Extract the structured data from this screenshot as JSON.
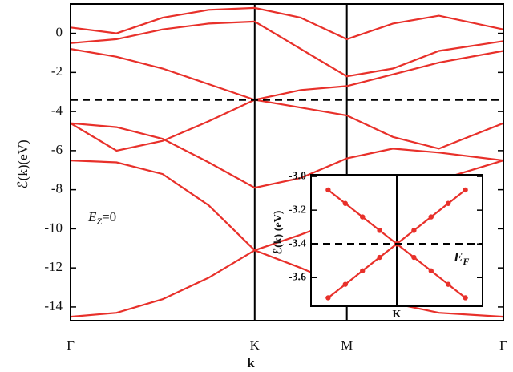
{
  "chart_data": [
    {
      "type": "line",
      "x_label": "k",
      "y_label": "ℰ(k)(eV)",
      "annotation": {
        "symbol": "E",
        "subscript": "Z",
        "text": "=0"
      },
      "x": [
        0,
        0.25,
        0.5,
        0.75,
        1,
        1.25,
        1.5,
        1.75,
        2,
        2.35
      ],
      "series": [
        {
          "color": "#e8302a",
          "values": [
            -0.8,
            -1.2,
            -1.8,
            -2.6,
            -3.4,
            -2.9,
            -2.7,
            -2.1,
            -1.5,
            -0.9
          ]
        },
        {
          "color": "#e8302a",
          "values": [
            -4.6,
            -6.0,
            -5.5,
            -4.5,
            -3.4,
            -3.8,
            -4.2,
            -5.3,
            -5.9,
            -4.6
          ]
        },
        {
          "color": "#e8302a",
          "values": [
            -4.6,
            -4.8,
            -5.4,
            -6.6,
            -7.9,
            -7.4,
            -6.4,
            -5.9,
            -6.1,
            -6.5
          ]
        },
        {
          "color": "#e8302a",
          "values": [
            -6.5,
            -6.6,
            -7.2,
            -8.8,
            -11.1,
            -10.3,
            -9.4,
            -8.3,
            -7.5,
            -6.5
          ]
        },
        {
          "color": "#e8302a",
          "values": [
            -14.5,
            -14.3,
            -13.6,
            -12.5,
            -11.1,
            -12.0,
            -13.0,
            -13.8,
            -14.3,
            -14.5
          ]
        },
        {
          "color": "#e8302a",
          "values": [
            -0.5,
            -0.3,
            0.2,
            0.5,
            0.6,
            -0.8,
            -2.2,
            -1.8,
            -0.9,
            -0.4
          ]
        },
        {
          "color": "#e8302a",
          "values": [
            0.3,
            0.0,
            0.8,
            1.2,
            1.3,
            0.8,
            -0.3,
            0.5,
            0.9,
            0.2
          ]
        }
      ],
      "hline": -3.4,
      "xlim": [
        0,
        2.35
      ],
      "xticks": [
        {
          "value": 0,
          "label": "Γ"
        },
        {
          "value": 1,
          "label": "K"
        },
        {
          "value": 1.5,
          "label": "M"
        },
        {
          "value": 2.35,
          "label": "Γ"
        }
      ],
      "xgrid": true,
      "ylim": [
        -14.7,
        1.5
      ],
      "yticks": [
        0,
        -2,
        -4,
        -6,
        -8,
        -10,
        -12,
        -14
      ]
    },
    {
      "type": "line",
      "y_label": "ℰ(k) (eV)",
      "annotation": {
        "symbol": "E",
        "subscript": "F"
      },
      "markers": true,
      "x": [
        0.96,
        0.97,
        0.98,
        0.99,
        1,
        1.01,
        1.02,
        1.03,
        1.04
      ],
      "series": [
        {
          "color": "#e8302a",
          "values": [
            -3.08,
            -3.16,
            -3.24,
            -3.32,
            -3.4,
            -3.32,
            -3.24,
            -3.16,
            -3.08
          ]
        },
        {
          "color": "#e8302a",
          "values": [
            -3.72,
            -3.64,
            -3.56,
            -3.48,
            -3.4,
            -3.48,
            -3.56,
            -3.64,
            -3.72
          ]
        }
      ],
      "hline": -3.4,
      "xlim": [
        0.95,
        1.05
      ],
      "xticks": [
        {
          "value": 1,
          "label": "K"
        }
      ],
      "xgrid": true,
      "ylim": [
        -3.77,
        -2.99
      ],
      "yticks": [
        {
          "value": -3.0,
          "label": "-3.0"
        },
        -3.2,
        -3.4,
        -3.6
      ]
    }
  ]
}
